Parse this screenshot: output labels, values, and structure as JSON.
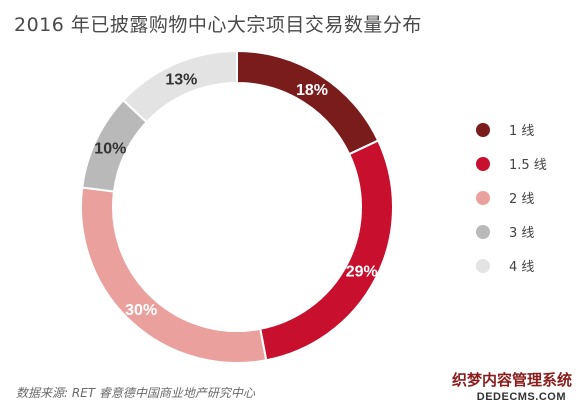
{
  "chart_data": {
    "type": "pie",
    "title": "2016 年已披露购物中心大宗项目交易数量分布",
    "categories": [
      "1 线",
      "1.5 线",
      "2 线",
      "3 线",
      "4 线"
    ],
    "values": [
      18,
      29,
      30,
      10,
      13
    ],
    "value_labels": [
      "18%",
      "29%",
      "30%",
      "10%",
      "13%"
    ],
    "colors": [
      "#7a1c1c",
      "#c8102e",
      "#eaa19d",
      "#b9b9b9",
      "#e3e3e3"
    ],
    "label_colors": [
      "#ffffff",
      "#ffffff",
      "#ffffff",
      "#333333",
      "#333333"
    ],
    "style": "donut",
    "legend_position": "right"
  },
  "source_text": "数据来源: RET 睿意德中国商业地产研究中心",
  "watermark": {
    "line1": "织梦内容管理系统",
    "line2": "DEDECMS.COM"
  }
}
